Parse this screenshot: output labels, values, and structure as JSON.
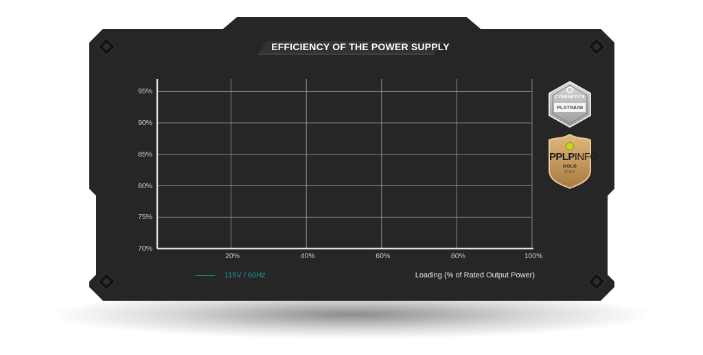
{
  "chart_data": {
    "type": "line",
    "title": "EFFICIENCY OF THE POWER SUPPLY",
    "xlabel": "Loading (% of Rated Output Power)",
    "ylabel": "",
    "xlim": [
      0,
      100
    ],
    "ylim": [
      70,
      97
    ],
    "x_ticks": [
      20,
      40,
      60,
      80,
      100
    ],
    "x_tick_labels": [
      "20%",
      "40%",
      "60%",
      "80%",
      "100%"
    ],
    "y_ticks": [
      70,
      75,
      80,
      85,
      90,
      95
    ],
    "y_tick_labels": [
      "70%",
      "75%",
      "80%",
      "85%",
      "90%",
      "95%"
    ],
    "grid": true,
    "legend_position": "bottom-left",
    "series": [
      {
        "name": "115V / 60Hz",
        "color": "#1a9c96",
        "x": [],
        "y": []
      }
    ]
  },
  "badges": {
    "cybenetics": {
      "brand": "CYBENETICS",
      "rating": "PLATINUM"
    },
    "pplp": {
      "brand_main": "PPLP",
      "brand_suffix": "INFO",
      "rating": "GOLD",
      "voltage": "115V"
    }
  },
  "colors": {
    "panel": "#262626",
    "grid": "#a8a8a8",
    "axis": "#e0e0e0",
    "accent": "#1a9c96",
    "badge_silver": "#b9b9b9",
    "badge_gold": "#c69a5e"
  }
}
